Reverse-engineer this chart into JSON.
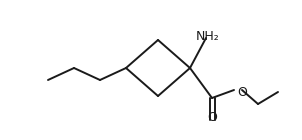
{
  "bg_color": "#ffffff",
  "line_color": "#1a1a1a",
  "line_width": 1.4,
  "O_label": "O",
  "NH2_label": "NH₂",
  "O_ester_label": "O",
  "figsize": [
    3.02,
    1.4
  ],
  "dpi": 100
}
